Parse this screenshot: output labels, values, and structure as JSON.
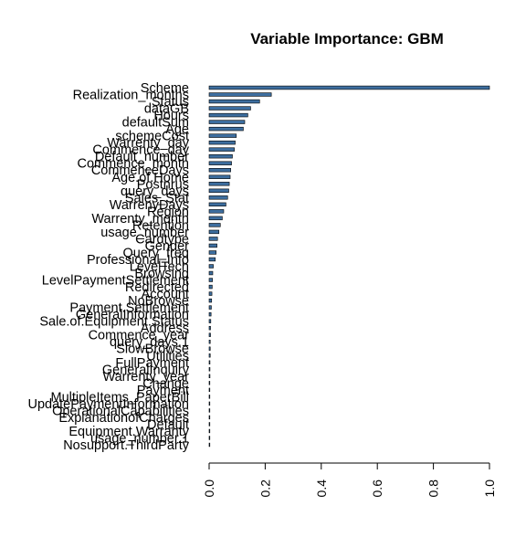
{
  "chart_data": {
    "type": "bar",
    "orientation": "horizontal",
    "title": "Variable Importance: GBM",
    "xlabel": "",
    "ylabel": "",
    "xlim": [
      0,
      1
    ],
    "x_ticks": [
      "0.0",
      "0.2",
      "0.4",
      "0.6",
      "0.8",
      "1.0"
    ],
    "grid": false,
    "bar_color": "#3d6e9f",
    "categories": [
      "Scheme",
      "Realization_months",
      "Status",
      "dataGB",
      "Hours",
      "defaultSum",
      "Age",
      "schemeCost",
      "Warrenty_day",
      "Commence_day",
      "Default_number",
      "Commence_month",
      "CommenceDays",
      "Age.of.Home",
      "Postnrus",
      "query_days",
      "Sales_Stat",
      "WarrenyDays",
      "Region",
      "Warrenty_month",
      "Retention",
      "usage_number",
      "Cardtype",
      "Gender",
      "Query_freq",
      "Professional_Info",
      "LevelTech",
      "Browsing",
      "LevelPaymentSettlement",
      "Redirected",
      "Account",
      "NoBrowse",
      "Payment.Settlement",
      "GeneralInformation",
      "Sale.of.Equipment.Status",
      "Address",
      "Commence_year",
      "query_days.1",
      "SlowBrowse",
      "Utilities",
      "FullPayment",
      "GeneralInquiry",
      "Warrenty_year",
      "Change",
      "Payment",
      "MultipleItems_PaperBill",
      "UpdatePaymentInformation",
      "OperationalCapabilities",
      "ExplanationofCharges",
      "Default",
      "Equipment.Warranty",
      "usage_number.1",
      "Nosupport.ThirdParty"
    ],
    "values": [
      1.0,
      0.222,
      0.18,
      0.148,
      0.138,
      0.127,
      0.122,
      0.097,
      0.093,
      0.09,
      0.083,
      0.08,
      0.077,
      0.075,
      0.072,
      0.07,
      0.066,
      0.06,
      0.052,
      0.047,
      0.04,
      0.035,
      0.03,
      0.028,
      0.025,
      0.022,
      0.015,
      0.013,
      0.012,
      0.011,
      0.01,
      0.009,
      0.008,
      0.007,
      0.006,
      0.005,
      0.005,
      0.004,
      0.004,
      0.004,
      0.003,
      0.003,
      0.003,
      0.002,
      0.002,
      0.002,
      0.001,
      0.001,
      0.001,
      0.001,
      0.0,
      0.0,
      0.0
    ]
  }
}
